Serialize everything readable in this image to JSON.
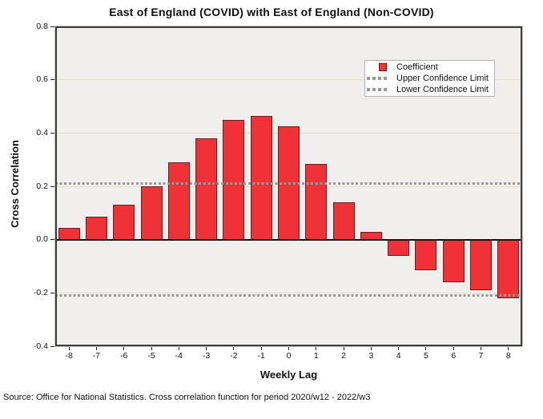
{
  "chart_data": {
    "type": "bar",
    "title": "East of England (COVID) with East of England (Non-COVID)",
    "xlabel": "Weekly Lag",
    "ylabel": "Cross Correlation",
    "categories": [
      "-8",
      "-7",
      "-6",
      "-5",
      "-4",
      "-3",
      "-2",
      "-1",
      "0",
      "1",
      "2",
      "3",
      "4",
      "5",
      "6",
      "7",
      "8"
    ],
    "values": [
      0.045,
      0.085,
      0.13,
      0.2,
      0.29,
      0.38,
      0.45,
      0.465,
      0.425,
      0.285,
      0.14,
      0.03,
      -0.06,
      -0.115,
      -0.16,
      -0.19,
      -0.22
    ],
    "upper_confidence_limit": 0.21,
    "lower_confidence_limit": -0.21,
    "ylim": [
      -0.4,
      0.8
    ],
    "yticks": [
      "0.8",
      "0.6",
      "0.4",
      "0.2",
      "0.0",
      "-0.2",
      "-0.4"
    ],
    "grid": true,
    "legend": {
      "position": "top-right",
      "entries": [
        "Coefficient",
        "Upper Confidence Limit",
        "Lower Confidence Limit"
      ]
    },
    "colors": {
      "bar_fill": "#ee3237",
      "bar_border": "#6b1f1f",
      "confidence_dots": "#97999b",
      "gridline": "#e3ddbb",
      "plot_background": "#f0efed",
      "frame": "#3d3d3d",
      "zero_line": "#151515"
    }
  },
  "source_note": "Source: Office for National Statistics. Cross correlation function for period 2020/w12 - 2022/w3"
}
